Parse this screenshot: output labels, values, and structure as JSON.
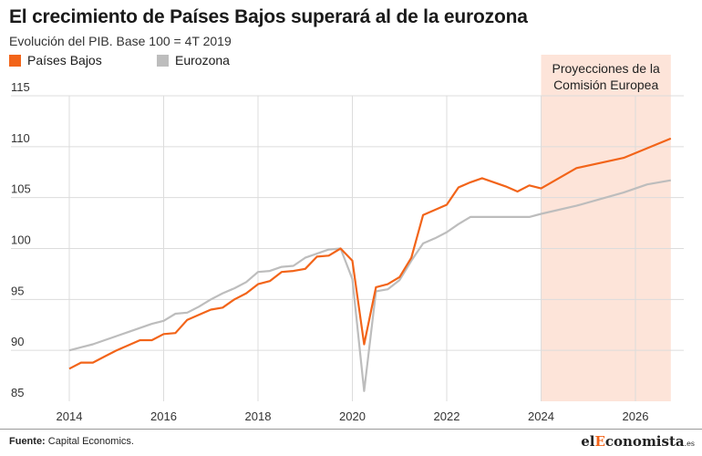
{
  "header": {
    "title": "El crecimiento de Países Bajos superará al de la eurozona",
    "subtitle": "Evolución del PIB. Base 100 = 4T 2019"
  },
  "footer": {
    "source_label": "Fuente:",
    "source_text": "Capital Economics.",
    "brand_pre": "el",
    "brand_highlight": "E",
    "brand_post": "conomista",
    "brand_suffix": ".es"
  },
  "colors": {
    "paises_bajos": "#f26419",
    "eurozona": "#bdbdbd",
    "projection_band": "#fde4d9",
    "grid": "#dcdcdc"
  },
  "chart_data": {
    "type": "line",
    "title": "El crecimiento de Países Bajos superará al de la eurozona",
    "subtitle": "Evolución del PIB. Base 100 = 4T 2019",
    "xlabel": "",
    "ylabel": "",
    "xlim": [
      2014.0,
      2027.0
    ],
    "ylim": [
      85,
      115
    ],
    "x_ticks": [
      2014,
      2016,
      2018,
      2020,
      2022,
      2024,
      2026
    ],
    "y_ticks": [
      85,
      90,
      95,
      100,
      105,
      110,
      115
    ],
    "grid": true,
    "legend_position": "top-left",
    "annotation": {
      "text_line1": "Proyecciones de la",
      "text_line2": "Comisión Europea",
      "x_start": 2024.0,
      "x_end": 2026.75
    },
    "series": [
      {
        "name": "Países Bajos",
        "color": "#f26419",
        "points": [
          [
            2014.0,
            88.2
          ],
          [
            2014.25,
            88.8
          ],
          [
            2014.5,
            88.8
          ],
          [
            2014.75,
            89.4
          ],
          [
            2015.0,
            90.0
          ],
          [
            2015.25,
            90.5
          ],
          [
            2015.5,
            91.0
          ],
          [
            2015.75,
            91.0
          ],
          [
            2016.0,
            91.6
          ],
          [
            2016.25,
            91.7
          ],
          [
            2016.5,
            93.0
          ],
          [
            2016.75,
            93.5
          ],
          [
            2017.0,
            94.0
          ],
          [
            2017.25,
            94.2
          ],
          [
            2017.5,
            95.0
          ],
          [
            2017.75,
            95.6
          ],
          [
            2018.0,
            96.5
          ],
          [
            2018.25,
            96.8
          ],
          [
            2018.5,
            97.7
          ],
          [
            2018.75,
            97.8
          ],
          [
            2019.0,
            98.0
          ],
          [
            2019.25,
            99.2
          ],
          [
            2019.5,
            99.3
          ],
          [
            2019.75,
            100.0
          ],
          [
            2020.0,
            98.8
          ],
          [
            2020.25,
            90.6
          ],
          [
            2020.5,
            96.2
          ],
          [
            2020.75,
            96.5
          ],
          [
            2021.0,
            97.2
          ],
          [
            2021.25,
            99.1
          ],
          [
            2021.5,
            103.3
          ],
          [
            2021.75,
            103.8
          ],
          [
            2022.0,
            104.3
          ],
          [
            2022.25,
            106.0
          ],
          [
            2022.5,
            106.5
          ],
          [
            2022.75,
            106.9
          ],
          [
            2023.0,
            106.5
          ],
          [
            2023.25,
            106.1
          ],
          [
            2023.5,
            105.6
          ],
          [
            2023.75,
            106.2
          ],
          [
            2024.0,
            105.9
          ],
          [
            2024.75,
            107.9
          ],
          [
            2025.75,
            108.9
          ],
          [
            2026.75,
            110.8
          ]
        ]
      },
      {
        "name": "Eurozona",
        "color": "#bdbdbd",
        "points": [
          [
            2014.0,
            90.0
          ],
          [
            2014.25,
            90.3
          ],
          [
            2014.5,
            90.6
          ],
          [
            2014.75,
            91.0
          ],
          [
            2015.0,
            91.4
          ],
          [
            2015.25,
            91.8
          ],
          [
            2015.5,
            92.2
          ],
          [
            2015.75,
            92.6
          ],
          [
            2016.0,
            92.9
          ],
          [
            2016.25,
            93.6
          ],
          [
            2016.5,
            93.7
          ],
          [
            2016.75,
            94.3
          ],
          [
            2017.0,
            95.0
          ],
          [
            2017.25,
            95.6
          ],
          [
            2017.5,
            96.1
          ],
          [
            2017.75,
            96.7
          ],
          [
            2018.0,
            97.7
          ],
          [
            2018.25,
            97.8
          ],
          [
            2018.5,
            98.2
          ],
          [
            2018.75,
            98.3
          ],
          [
            2019.0,
            99.1
          ],
          [
            2019.25,
            99.5
          ],
          [
            2019.5,
            99.9
          ],
          [
            2019.75,
            100.0
          ],
          [
            2020.0,
            97.0
          ],
          [
            2020.25,
            86.0
          ],
          [
            2020.5,
            95.8
          ],
          [
            2020.75,
            96.0
          ],
          [
            2021.0,
            96.9
          ],
          [
            2021.25,
            98.8
          ],
          [
            2021.5,
            100.5
          ],
          [
            2021.75,
            101.0
          ],
          [
            2022.0,
            101.6
          ],
          [
            2022.25,
            102.4
          ],
          [
            2022.5,
            103.1
          ],
          [
            2022.75,
            103.1
          ],
          [
            2023.0,
            103.1
          ],
          [
            2023.25,
            103.1
          ],
          [
            2023.5,
            103.1
          ],
          [
            2023.75,
            103.1
          ],
          [
            2024.0,
            103.4
          ],
          [
            2024.75,
            104.2
          ],
          [
            2025.75,
            105.5
          ],
          [
            2026.25,
            106.3
          ],
          [
            2026.75,
            106.7
          ]
        ]
      }
    ]
  }
}
